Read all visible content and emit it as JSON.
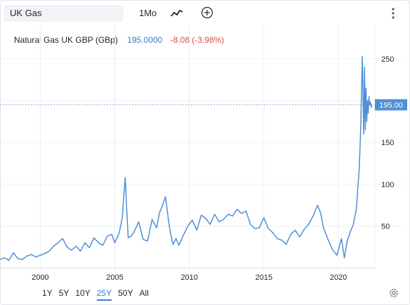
{
  "toolbar": {
    "symbol": "UK Gas",
    "interval": "1Mo",
    "chart_type_icon": "line-chart-icon",
    "add_icon": "plus-circle-icon",
    "menu_icon": "vertical-dots-icon"
  },
  "legend": {
    "name": "Natural Gas UK GBP (GBp)",
    "price": "195.0000",
    "change": "-8.08 (-3.98%)"
  },
  "price_label": "195.00",
  "ranges": [
    "1Y",
    "5Y",
    "10Y",
    "25Y",
    "50Y",
    "All"
  ],
  "active_range": "25Y",
  "settings_icon": "gear-icon",
  "colors": {
    "line": "#4f8fd6",
    "price_tag": "#4f8fd6",
    "change_negative": "#e04848",
    "accent": "#3d7cc9"
  },
  "chart_data": {
    "type": "line",
    "title": "",
    "xlabel": "",
    "ylabel": "",
    "xlim": [
      1997.3,
      2022.4
    ],
    "ylim": [
      0,
      265
    ],
    "x_ticks": [
      2000,
      2005,
      2010,
      2015,
      2020
    ],
    "y_ticks": [
      50,
      100,
      150,
      200,
      250
    ],
    "y_tick_labels": [
      "50",
      "100",
      "150",
      "",
      "250"
    ],
    "grid": true,
    "last_value": 195.0,
    "series": [
      {
        "name": "",
        "x": [
          1997.3,
          1997.6,
          1997.9,
          1998.2,
          1998.5,
          1998.8,
          1999.1,
          1999.4,
          1999.7,
          2000.0,
          2000.3,
          2000.6,
          2000.9,
          2001.2,
          2001.5,
          2001.8,
          2002.1,
          2002.4,
          2002.7,
          2003.0,
          2003.3,
          2003.6,
          2003.9,
          2004.2,
          2004.5,
          2004.8,
          2005.0,
          2005.3,
          2005.5,
          2005.7,
          2005.8,
          2005.9,
          2006.1,
          2006.3,
          2006.6,
          2006.9,
          2007.2,
          2007.5,
          2007.8,
          2008.0,
          2008.2,
          2008.4,
          2008.6,
          2008.7,
          2008.9,
          2009.1,
          2009.3,
          2009.6,
          2009.9,
          2010.2,
          2010.5,
          2010.8,
          2011.1,
          2011.4,
          2011.7,
          2012.0,
          2012.3,
          2012.6,
          2012.9,
          2013.2,
          2013.5,
          2013.8,
          2014.1,
          2014.4,
          2014.7,
          2015.0,
          2015.3,
          2015.6,
          2015.9,
          2016.2,
          2016.5,
          2016.8,
          2017.1,
          2017.4,
          2017.7,
          2018.0,
          2018.3,
          2018.6,
          2018.8,
          2019.0,
          2019.3,
          2019.6,
          2019.9,
          2020.2,
          2020.4,
          2020.6,
          2020.8,
          2021.0,
          2021.2,
          2021.4,
          2021.5,
          2021.6,
          2021.7,
          2021.75,
          2021.8,
          2021.85,
          2021.9,
          2021.95,
          2022.0,
          2022.05,
          2022.1,
          2022.15,
          2022.2,
          2022.25
        ],
        "values": [
          10,
          12,
          9,
          18,
          11,
          10,
          14,
          16,
          13,
          15,
          17,
          20,
          26,
          30,
          35,
          25,
          21,
          26,
          20,
          30,
          24,
          36,
          30,
          27,
          38,
          40,
          30,
          42,
          60,
          108,
          70,
          36,
          38,
          43,
          55,
          34,
          32,
          58,
          48,
          66,
          75,
          85,
          57,
          45,
          28,
          35,
          27,
          39,
          50,
          57,
          45,
          63,
          59,
          52,
          64,
          55,
          58,
          64,
          62,
          70,
          65,
          68,
          52,
          47,
          48,
          60,
          47,
          42,
          35,
          33,
          28,
          40,
          45,
          37,
          46,
          52,
          62,
          75,
          66,
          48,
          34,
          22,
          15,
          35,
          12,
          33,
          43,
          52,
          70,
          120,
          170,
          253,
          160,
          240,
          165,
          215,
          175,
          200,
          185,
          205,
          195,
          198,
          192,
          195
        ]
      }
    ]
  }
}
